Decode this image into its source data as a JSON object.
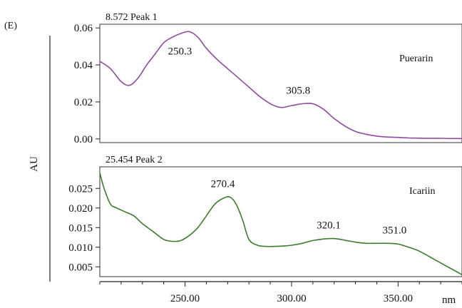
{
  "figure_label": "(E)",
  "y_axis_label": "AU",
  "x_unit_label": "nm",
  "x_ticks": [
    250,
    300,
    350
  ],
  "x_tick_labels": [
    "250.00",
    "300.00",
    "350.00"
  ],
  "x_range": [
    210,
    380
  ],
  "chart_data": [
    {
      "type": "line",
      "panel_title": "8.572 Peak 1",
      "compound": "Puerarin",
      "color": "#8e4a9e",
      "y_ticks": [
        0.0,
        0.02,
        0.04,
        0.06
      ],
      "y_tick_labels": [
        "0.00",
        "0.02",
        "0.04",
        "0.06"
      ],
      "ylim": [
        -0.002,
        0.062
      ],
      "x": [
        210,
        215,
        220,
        224,
        228,
        232,
        236,
        240,
        244,
        248,
        252,
        256,
        260,
        265,
        270,
        275,
        280,
        285,
        290,
        295,
        300,
        305,
        310,
        315,
        320,
        325,
        330,
        335,
        340,
        345,
        350,
        355,
        360,
        365,
        370,
        375,
        380
      ],
      "y": [
        0.042,
        0.038,
        0.031,
        0.029,
        0.033,
        0.04,
        0.046,
        0.052,
        0.055,
        0.057,
        0.058,
        0.055,
        0.049,
        0.043,
        0.038,
        0.033,
        0.028,
        0.023,
        0.019,
        0.017,
        0.018,
        0.019,
        0.019,
        0.016,
        0.011,
        0.007,
        0.004,
        0.0025,
        0.0015,
        0.001,
        0.0008,
        0.0005,
        0.0004,
        0.0003,
        0.0003,
        0.0002,
        0.0002
      ],
      "peak_annotations": [
        {
          "x": 250.3,
          "y": 0.058,
          "label": "250.3"
        },
        {
          "x": 305.8,
          "y": 0.019,
          "label": "305.8"
        }
      ]
    },
    {
      "type": "line",
      "panel_title": "25.454 Peak 2",
      "compound": "Icariin",
      "color": "#3d7a2e",
      "y_ticks": [
        0.005,
        0.01,
        0.015,
        0.02,
        0.025
      ],
      "y_tick_labels": [
        "0.005",
        "0.010",
        "0.015",
        "0.020",
        "0.025"
      ],
      "ylim": [
        0.0025,
        0.0305
      ],
      "x": [
        210,
        212,
        215,
        218,
        222,
        226,
        230,
        235,
        240,
        244,
        248,
        252,
        256,
        260,
        264,
        268,
        271,
        274,
        277,
        280,
        284,
        288,
        292,
        296,
        300,
        305,
        310,
        315,
        320,
        325,
        330,
        335,
        340,
        345,
        350,
        355,
        360,
        365,
        370,
        375,
        380
      ],
      "y": [
        0.029,
        0.025,
        0.021,
        0.02,
        0.019,
        0.018,
        0.016,
        0.014,
        0.012,
        0.0115,
        0.0117,
        0.013,
        0.015,
        0.018,
        0.021,
        0.0225,
        0.0228,
        0.021,
        0.017,
        0.012,
        0.0105,
        0.0102,
        0.0102,
        0.0103,
        0.0105,
        0.011,
        0.0117,
        0.0121,
        0.0122,
        0.0118,
        0.0113,
        0.011,
        0.011,
        0.011,
        0.0108,
        0.01,
        0.009,
        0.0075,
        0.006,
        0.0045,
        0.003
      ],
      "peak_annotations": [
        {
          "x": 270.4,
          "y": 0.0228,
          "label": "270.4"
        },
        {
          "x": 320.1,
          "y": 0.0122,
          "label": "320.1"
        },
        {
          "x": 351.0,
          "y": 0.011,
          "label": "351.0"
        }
      ]
    }
  ]
}
